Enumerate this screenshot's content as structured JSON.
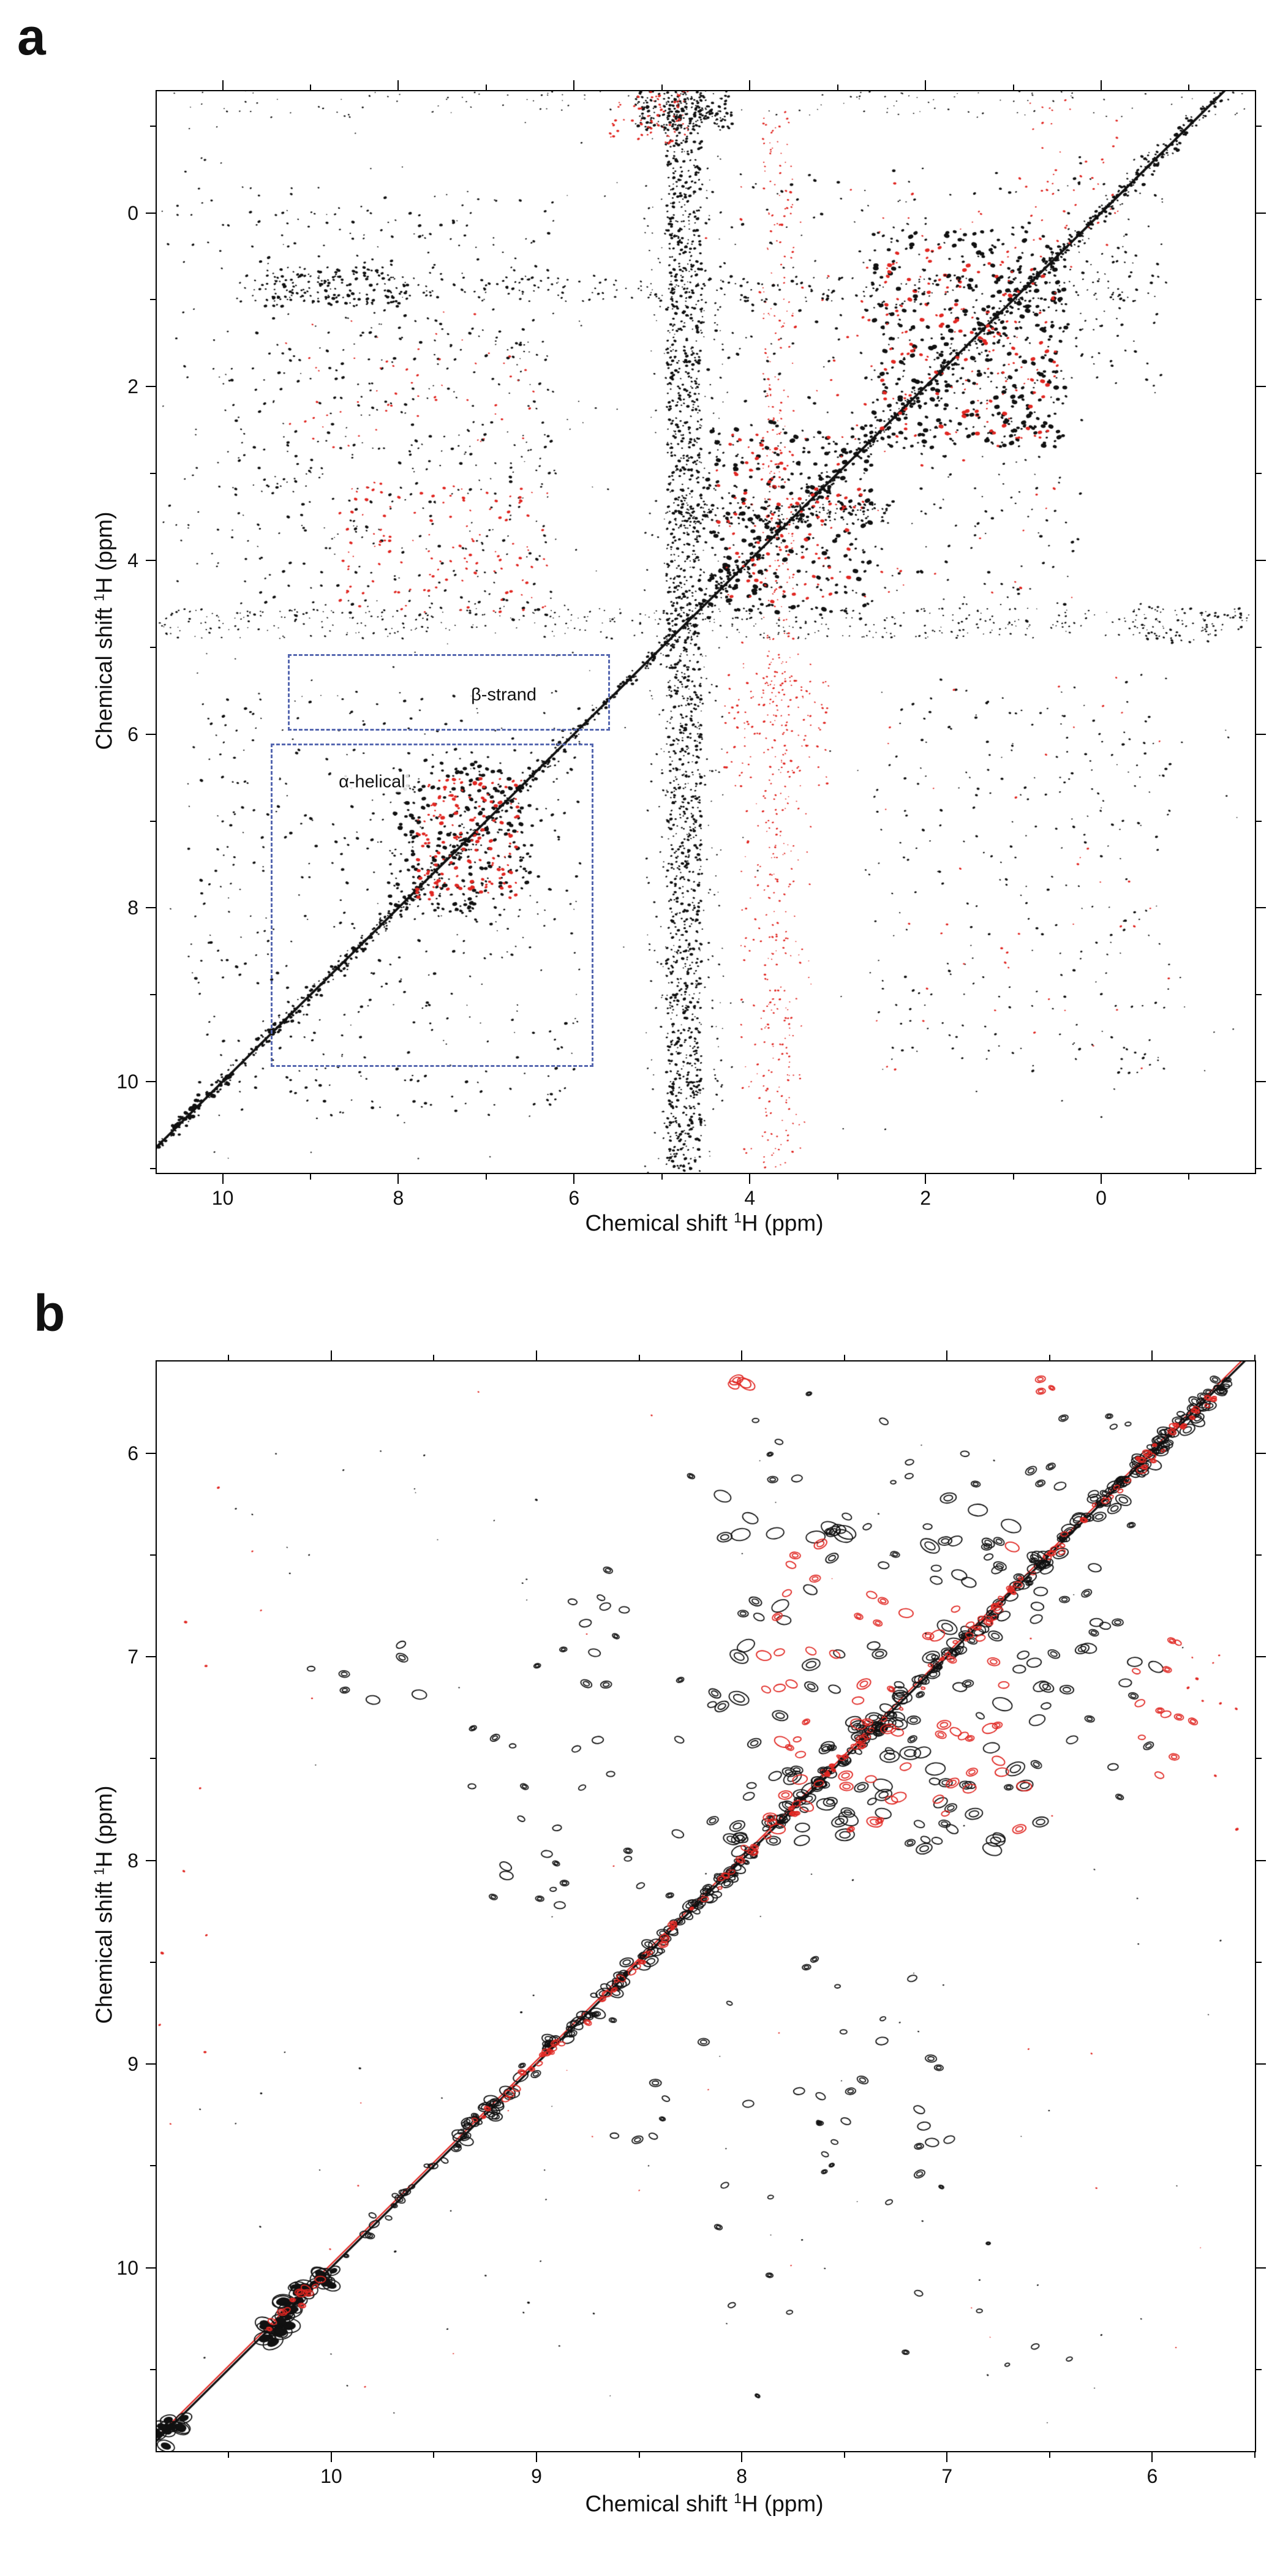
{
  "figure": {
    "panel_a_letter": "a",
    "panel_b_letter": "b"
  },
  "colors": {
    "black": "#111111",
    "red": "#e02722",
    "annotation_blue": "#5567b0"
  },
  "axis_title": {
    "prefix": "Chemical shift ",
    "sup": "1",
    "suffix": "H (ppm)"
  },
  "chart_data": [
    {
      "id": "panel_a",
      "type": "scatter",
      "title": "",
      "xlabel": "Chemical shift 1H (ppm)",
      "ylabel": "Chemical shift 1H (ppm)",
      "x_axis_reversed": true,
      "y_axis_reversed": true,
      "grid": false,
      "seed": 11,
      "x_range": [
        10.75,
        -1.75
      ],
      "y_range": [
        -1.4,
        11.05
      ],
      "x_ticks": [
        10,
        8,
        6,
        4,
        2,
        0
      ],
      "y_ticks": [
        0,
        2,
        4,
        6,
        8,
        10
      ],
      "x_minor_step": 1,
      "y_minor_step": 1,
      "diagonal": {
        "from": -1.45,
        "to": 10.9,
        "black_width": 4,
        "white_offset": 4,
        "red_offset": 0
      },
      "water_band_ppm": 4.75,
      "annotations": [
        {
          "label": "β-strand",
          "box_x": [
            9.26,
            5.63
          ],
          "box_y": [
            5.08,
            5.92
          ],
          "label_at": [
            6.8,
            5.55
          ]
        },
        {
          "label": "α-helical",
          "box_x": [
            9.45,
            5.82
          ],
          "box_y": [
            6.11,
            9.79
          ],
          "label_at": [
            8.3,
            6.55
          ]
        }
      ],
      "clusters": [
        {
          "type": "diag",
          "from": -1.35,
          "to": 10.85,
          "spread": 0.05,
          "n": 900,
          "c": "k",
          "s": [
            2,
            5
          ]
        },
        {
          "type": "diag",
          "from": -1.0,
          "to": 4.6,
          "spread": 0.12,
          "n": 260,
          "c": "k",
          "s": [
            2,
            6
          ]
        },
        {
          "type": "diag",
          "from": 6.0,
          "to": 9.6,
          "spread": 0.1,
          "n": 160,
          "c": "k",
          "s": [
            2,
            6
          ]
        },
        {
          "type": "diag",
          "from": 9.9,
          "to": 10.6,
          "spread": 0.07,
          "n": 50,
          "c": "k",
          "s": [
            3,
            8
          ]
        },
        {
          "x": [
            4.55,
            4.95
          ],
          "y": [
            -1.45,
            11.05
          ],
          "n": 1500,
          "c": "k",
          "s": [
            2,
            5
          ]
        },
        {
          "x": [
            4.3,
            5.2
          ],
          "y": [
            -1.45,
            11.05
          ],
          "n": 420,
          "c": "k",
          "s": [
            1.5,
            3.5
          ]
        },
        {
          "x": [
            4.2,
            5.3
          ],
          "y": [
            -1.45,
            -0.95
          ],
          "n": 200,
          "c": "k",
          "s": [
            2,
            5
          ]
        },
        {
          "x": [
            4.7,
            5.6
          ],
          "y": [
            -1.45,
            -0.8
          ],
          "n": 80,
          "c": "r",
          "s": [
            2,
            4.5
          ]
        },
        {
          "x": [
            3.5,
            3.85
          ],
          "y": [
            -1.3,
            11.05
          ],
          "n": 380,
          "c": "r",
          "s": [
            1.5,
            3.5
          ]
        },
        {
          "x": [
            3.3,
            4.1
          ],
          "y": [
            4.9,
            11.0
          ],
          "n": 160,
          "c": "r",
          "s": [
            1.5,
            3.5
          ]
        },
        {
          "x": [
            -1.7,
            10.75
          ],
          "y": [
            4.55,
            4.9
          ],
          "n": 450,
          "c": "k",
          "s": [
            1.5,
            3.5
          ]
        },
        {
          "x": [
            -1.7,
            10.75
          ],
          "y": [
            -1.42,
            -1.1
          ],
          "n": 140,
          "c": "k",
          "s": [
            1.5,
            3
          ]
        },
        {
          "x": [
            0.4,
            2.6
          ],
          "y": [
            0.2,
            2.7
          ],
          "n": 430,
          "c": "k",
          "s": [
            2.5,
            8
          ]
        },
        {
          "x": [
            0.5,
            2.5
          ],
          "y": [
            0.4,
            2.6
          ],
          "n": 170,
          "c": "r",
          "s": [
            2.5,
            7
          ]
        },
        {
          "x": [
            2.6,
            4.5
          ],
          "y": [
            2.4,
            4.6
          ],
          "n": 270,
          "c": "k",
          "s": [
            2.5,
            8
          ]
        },
        {
          "x": [
            2.7,
            4.4
          ],
          "y": [
            2.5,
            4.5
          ],
          "n": 120,
          "c": "r",
          "s": [
            2.5,
            6.5
          ]
        },
        {
          "x": [
            0.2,
            4.6
          ],
          "y": [
            -0.6,
            4.7
          ],
          "n": 400,
          "c": "k",
          "s": [
            2,
            5
          ]
        },
        {
          "x": [
            0.3,
            4.5
          ],
          "y": [
            -0.4,
            4.6
          ],
          "n": 90,
          "c": "r",
          "s": [
            2,
            4.5
          ]
        },
        {
          "x": [
            -0.7,
            0.3
          ],
          "y": [
            -0.7,
            2.1
          ],
          "n": 90,
          "c": "k",
          "s": [
            2,
            4.5
          ]
        },
        {
          "x": [
            -0.8,
            9.7
          ],
          "y": [
            0.72,
            1.02
          ],
          "n": 260,
          "c": "k",
          "s": [
            2,
            4.5
          ]
        },
        {
          "x": [
            7.9,
            9.5
          ],
          "y": [
            0.62,
            1.08
          ],
          "n": 130,
          "c": "k",
          "s": [
            2.5,
            5.5
          ]
        },
        {
          "x": [
            6.2,
            9.9
          ],
          "y": [
            -0.3,
            4.7
          ],
          "n": 520,
          "c": "k",
          "s": [
            2,
            5
          ]
        },
        {
          "x": [
            6.3,
            8.7
          ],
          "y": [
            3.1,
            4.6
          ],
          "n": 130,
          "c": "r",
          "s": [
            2,
            5
          ]
        },
        {
          "x": [
            6.4,
            9.3
          ],
          "y": [
            1.1,
            2.7
          ],
          "n": 60,
          "c": "r",
          "s": [
            2,
            4
          ]
        },
        {
          "x": [
            2.4,
            4.75
          ],
          "y": [
            3.35,
            3.58
          ],
          "n": 150,
          "c": "k",
          "s": [
            2,
            4.5
          ]
        },
        {
          "x": [
            5.9,
            10.4
          ],
          "y": [
            5.5,
            10.4
          ],
          "n": 430,
          "c": "k",
          "s": [
            2,
            5
          ]
        },
        {
          "x": [
            6.5,
            8.1
          ],
          "y": [
            6.3,
            8.1
          ],
          "n": 270,
          "c": "k",
          "s": [
            2.5,
            7
          ]
        },
        {
          "x": [
            6.6,
            7.8
          ],
          "y": [
            6.5,
            7.9
          ],
          "n": 160,
          "c": "r",
          "s": [
            2.5,
            6.5
          ]
        },
        {
          "x": [
            -0.8,
            2.6
          ],
          "y": [
            5.3,
            9.9
          ],
          "n": 250,
          "c": "k",
          "s": [
            2,
            4.5
          ]
        },
        {
          "x": [
            -0.8,
            2.6
          ],
          "y": [
            5.3,
            9.9
          ],
          "n": 45,
          "c": "r",
          "s": [
            2,
            4
          ]
        },
        {
          "x": [
            3.1,
            4.3
          ],
          "y": [
            5.3,
            6.6
          ],
          "n": 80,
          "c": "r",
          "s": [
            2,
            4
          ]
        },
        {
          "x": [
            -0.2,
            0.9
          ],
          "y": [
            -1.3,
            0.4
          ],
          "n": 45,
          "c": "r",
          "s": [
            2,
            4
          ]
        },
        {
          "x": [
            -1.6,
            -0.4
          ],
          "y": [
            4.5,
            4.95
          ],
          "n": 55,
          "c": "k",
          "s": [
            2,
            4.5
          ]
        },
        {
          "x": [
            9.9,
            10.7
          ],
          "y": [
            -1.2,
            4.4
          ],
          "n": 45,
          "c": "k",
          "s": [
            2,
            4
          ]
        },
        {
          "x": [
            5.5,
            10.5
          ],
          "y": [
            -1.3,
            5.2
          ],
          "n": 120,
          "c": "k",
          "s": [
            1.5,
            3
          ]
        },
        {
          "x": [
            -1.6,
            10.6
          ],
          "y": [
            5.2,
            10.9
          ],
          "n": 130,
          "c": "k",
          "s": [
            1.5,
            3
          ]
        }
      ]
    },
    {
      "id": "panel_b",
      "type": "scatter",
      "title": "",
      "xlabel": "Chemical shift 1H (ppm)",
      "ylabel": "Chemical shift 1H (ppm)",
      "x_axis_reversed": true,
      "y_axis_reversed": true,
      "grid": false,
      "seed": 23,
      "x_range": [
        10.85,
        5.5
      ],
      "y_range": [
        5.55,
        10.9
      ],
      "x_ticks": [
        10,
        9,
        8,
        7,
        6
      ],
      "y_ticks": [
        6,
        7,
        8,
        9,
        10
      ],
      "x_minor_step": 0.5,
      "y_minor_step": 0.5,
      "diagonal": {
        "from": 5.5,
        "to": 10.9,
        "black_width": 4,
        "white_offset": 3,
        "red_offset": -6
      },
      "annotations": [],
      "clusters": [
        {
          "type": "diag",
          "from": 5.62,
          "to": 9.38,
          "spread": 0.035,
          "n": 300,
          "c": "k",
          "s": [
            5,
            13
          ],
          "style": "ring"
        },
        {
          "type": "diag",
          "from": 5.7,
          "to": 9.3,
          "spread": 0.025,
          "n": 130,
          "c": "r",
          "s": [
            3,
            8
          ],
          "style": "ring"
        },
        {
          "type": "diag",
          "from": 9.4,
          "to": 9.95,
          "spread": 0.03,
          "n": 18,
          "c": "k",
          "s": [
            4,
            9
          ],
          "style": "ring"
        },
        {
          "type": "diag",
          "from": 10.02,
          "to": 10.35,
          "spread": 0.05,
          "n": 34,
          "c": "k",
          "s": [
            9,
            20
          ],
          "style": "blob"
        },
        {
          "type": "diag",
          "from": 10.05,
          "to": 10.3,
          "spread": 0.03,
          "n": 12,
          "c": "r",
          "s": [
            4,
            9
          ],
          "style": "ring"
        },
        {
          "type": "diag",
          "from": 10.72,
          "to": 10.85,
          "spread": 0.04,
          "n": 12,
          "c": "k",
          "s": [
            10,
            20
          ],
          "style": "blob"
        },
        {
          "x": [
            6.5,
            8.1
          ],
          "y": [
            6.2,
            7.95
          ],
          "n": 135,
          "c": "k",
          "s": [
            7,
            17
          ],
          "style": "ring"
        },
        {
          "x": [
            6.6,
            7.9
          ],
          "y": [
            6.4,
            7.85
          ],
          "n": 70,
          "c": "r",
          "s": [
            6,
            13
          ],
          "style": "ring"
        },
        {
          "x": [
            5.9,
            6.6
          ],
          "y": [
            6.2,
            7.7
          ],
          "n": 30,
          "c": "k",
          "s": [
            6,
            13
          ],
          "style": "ring"
        },
        {
          "x": [
            5.75,
            6.15
          ],
          "y": [
            6.9,
            7.6
          ],
          "n": 12,
          "c": "r",
          "s": [
            5,
            10
          ],
          "style": "ring"
        },
        {
          "x": [
            8.1,
            9.4
          ],
          "y": [
            6.5,
            8.3
          ],
          "n": 42,
          "c": "k",
          "s": [
            5,
            11
          ],
          "style": "ring"
        },
        {
          "x": [
            9.5,
            10.3
          ],
          "y": [
            6.9,
            7.3
          ],
          "n": 7,
          "c": "k",
          "s": [
            6,
            12
          ],
          "style": "ring"
        },
        {
          "x": [
            7.0,
            8.7
          ],
          "y": [
            8.3,
            9.75
          ],
          "n": 36,
          "c": "k",
          "s": [
            4,
            10
          ],
          "style": "ring"
        },
        {
          "x": [
            6.95,
            7.15
          ],
          "y": [
            8.95,
            9.4
          ],
          "n": 5,
          "c": "k",
          "s": [
            7,
            12
          ],
          "style": "ring"
        },
        {
          "x": [
            6.1,
            8.3
          ],
          "y": [
            5.68,
            6.2
          ],
          "n": 22,
          "c": "k",
          "s": [
            4,
            10
          ],
          "style": "ring"
        },
        {
          "x": [
            7.85,
            8.05
          ],
          "y": [
            5.6,
            5.8
          ],
          "n": 4,
          "c": "r",
          "s": [
            8,
            13
          ],
          "style": "ring"
        },
        {
          "x": [
            6.4,
            6.7
          ],
          "y": [
            5.62,
            5.8
          ],
          "n": 3,
          "c": "r",
          "s": [
            5,
            9
          ],
          "style": "ring"
        },
        {
          "x": [
            10.55,
            10.85
          ],
          "y": [
            6.0,
            9.3
          ],
          "n": 10,
          "c": "r",
          "s": [
            2.5,
            5
          ]
        },
        {
          "x": [
            5.55,
            5.85
          ],
          "y": [
            6.2,
            7.9
          ],
          "n": 9,
          "c": "r",
          "s": [
            2.5,
            5
          ]
        },
        {
          "x": [
            6.3,
            8.2
          ],
          "y": [
            9.8,
            10.7
          ],
          "n": 12,
          "c": "k",
          "s": [
            3,
            7
          ],
          "style": "ring"
        },
        {
          "x": [
            8.6,
            10.4
          ],
          "y": [
            8.6,
            10.45
          ],
          "n": 14,
          "c": "k",
          "s": [
            2,
            4
          ]
        },
        {
          "x": [
            9.0,
            10.6
          ],
          "y": [
            5.8,
            6.8
          ],
          "n": 10,
          "c": "k",
          "s": [
            2,
            4
          ]
        },
        {
          "x": [
            5.6,
            10.8
          ],
          "y": [
            5.6,
            10.8
          ],
          "n": 70,
          "c": "k",
          "s": [
            1.5,
            3
          ]
        },
        {
          "x": [
            5.6,
            10.8
          ],
          "y": [
            5.6,
            10.8
          ],
          "n": 30,
          "c": "r",
          "s": [
            1.5,
            3
          ]
        }
      ]
    }
  ]
}
